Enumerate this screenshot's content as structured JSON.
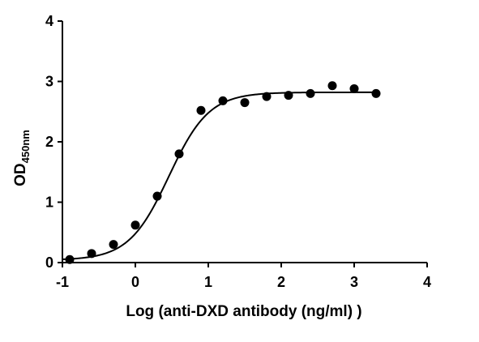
{
  "chart_data": {
    "type": "scatter",
    "title": "",
    "xlabel": "Log (anti-DXD antibody (ng/ml) )",
    "ylabel_main": "OD",
    "ylabel_sub": "450nm",
    "xlim": [
      -1,
      4
    ],
    "ylim": [
      0,
      4
    ],
    "x_ticks": [
      -1,
      0,
      1,
      2,
      3,
      4
    ],
    "y_ticks": [
      0,
      1,
      2,
      3,
      4
    ],
    "x_tick_labels": [
      "-1",
      "0",
      "1",
      "2",
      "3",
      "4"
    ],
    "y_tick_labels": [
      "0",
      "1",
      "2",
      "3",
      "4"
    ],
    "grid": false,
    "legend": "none",
    "marker_color": "#000000",
    "line_color": "#000000",
    "series": [
      {
        "x": [
          -0.9,
          -0.6,
          -0.3,
          0.0,
          0.3,
          0.6,
          0.9,
          1.2,
          1.5,
          1.8,
          2.1,
          2.4,
          2.7,
          3.0,
          3.3
        ],
        "y": [
          0.05,
          0.15,
          0.3,
          0.62,
          1.1,
          1.8,
          2.52,
          2.68,
          2.65,
          2.75,
          2.77,
          2.8,
          2.93,
          2.88,
          2.8
        ]
      }
    ],
    "fit_curve": {
      "model": "4PL",
      "bottom": 0.04,
      "top": 2.82,
      "log_ec50": 0.46,
      "hill_slope": 1.58,
      "x_range": [
        -1,
        3.3
      ]
    }
  }
}
